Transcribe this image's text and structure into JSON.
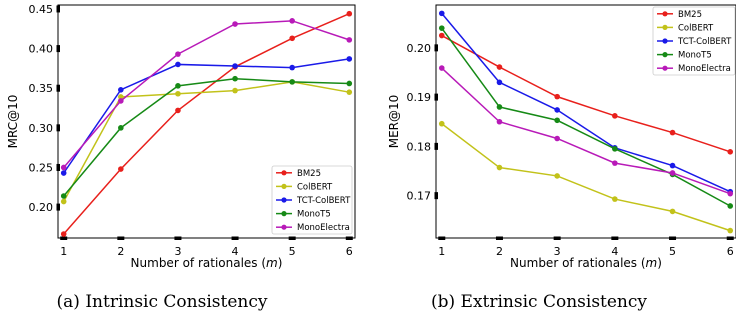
{
  "chart_data": [
    {
      "type": "line",
      "caption": "(a) Intrinsic Consistency",
      "xlabel": "Number of rationales (m)",
      "ylabel": "MRC@10",
      "x": [
        1,
        2,
        3,
        4,
        5,
        6
      ],
      "xticks": [
        "1",
        "2",
        "3",
        "4",
        "5",
        "6"
      ],
      "yticks": [
        0.2,
        0.25,
        0.3,
        0.35,
        0.4,
        0.45
      ],
      "ytick_labels": [
        "0.20",
        "0.25",
        "0.30",
        "0.35",
        "0.40",
        "0.45"
      ],
      "xlim": [
        0.9,
        6.1
      ],
      "ylim": [
        0.161,
        0.455
      ],
      "legend": "lower-right",
      "grid": false,
      "series": [
        {
          "name": "BM25",
          "color": "#e8201c",
          "values": [
            0.166,
            0.248,
            0.322,
            0.377,
            0.413,
            0.444
          ]
        },
        {
          "name": "ColBERT",
          "color": "#c2c21a",
          "values": [
            0.207,
            0.339,
            0.343,
            0.347,
            0.358,
            0.345
          ]
        },
        {
          "name": "TCT-ColBERT",
          "color": "#1a1ae8",
          "values": [
            0.243,
            0.348,
            0.38,
            0.378,
            0.376,
            0.387
          ]
        },
        {
          "name": "MonoT5",
          "color": "#168a16",
          "values": [
            0.214,
            0.3,
            0.353,
            0.362,
            0.358,
            0.356
          ]
        },
        {
          "name": "MonoElectra",
          "color": "#b81ab8",
          "values": [
            0.25,
            0.334,
            0.393,
            0.431,
            0.435,
            0.411
          ]
        }
      ]
    },
    {
      "type": "line",
      "caption": "(b) Extrinsic Consistency",
      "xlabel": "Number of rationales (m)",
      "ylabel": "MER@10",
      "x": [
        1,
        2,
        3,
        4,
        5,
        6
      ],
      "xticks": [
        "1",
        "2",
        "3",
        "4",
        "5",
        "6"
      ],
      "yticks": [
        0.17,
        0.18,
        0.19,
        0.2
      ],
      "ytick_labels": [
        "0.17",
        "0.18",
        "0.19",
        "0.20"
      ],
      "xlim": [
        0.9,
        6.1
      ],
      "ylim": [
        0.1614,
        0.2087
      ],
      "legend": "top-right",
      "grid": false,
      "series": [
        {
          "name": "BM25",
          "color": "#e8201c",
          "values": [
            0.2025,
            0.1961,
            0.1901,
            0.1862,
            0.1828,
            0.1789
          ]
        },
        {
          "name": "ColBERT",
          "color": "#c2c21a",
          "values": [
            0.1846,
            0.1757,
            0.174,
            0.1693,
            0.1668,
            0.1629
          ]
        },
        {
          "name": "TCT-ColBERT",
          "color": "#1a1ae8",
          "values": [
            0.207,
            0.193,
            0.1874,
            0.1797,
            0.1761,
            0.1708
          ]
        },
        {
          "name": "MonoT5",
          "color": "#168a16",
          "values": [
            0.204,
            0.188,
            0.1853,
            0.1795,
            0.1743,
            0.1679
          ]
        },
        {
          "name": "MonoElectra",
          "color": "#b81ab8",
          "values": [
            0.1959,
            0.185,
            0.1816,
            0.1766,
            0.1746,
            0.1704
          ]
        }
      ]
    }
  ]
}
